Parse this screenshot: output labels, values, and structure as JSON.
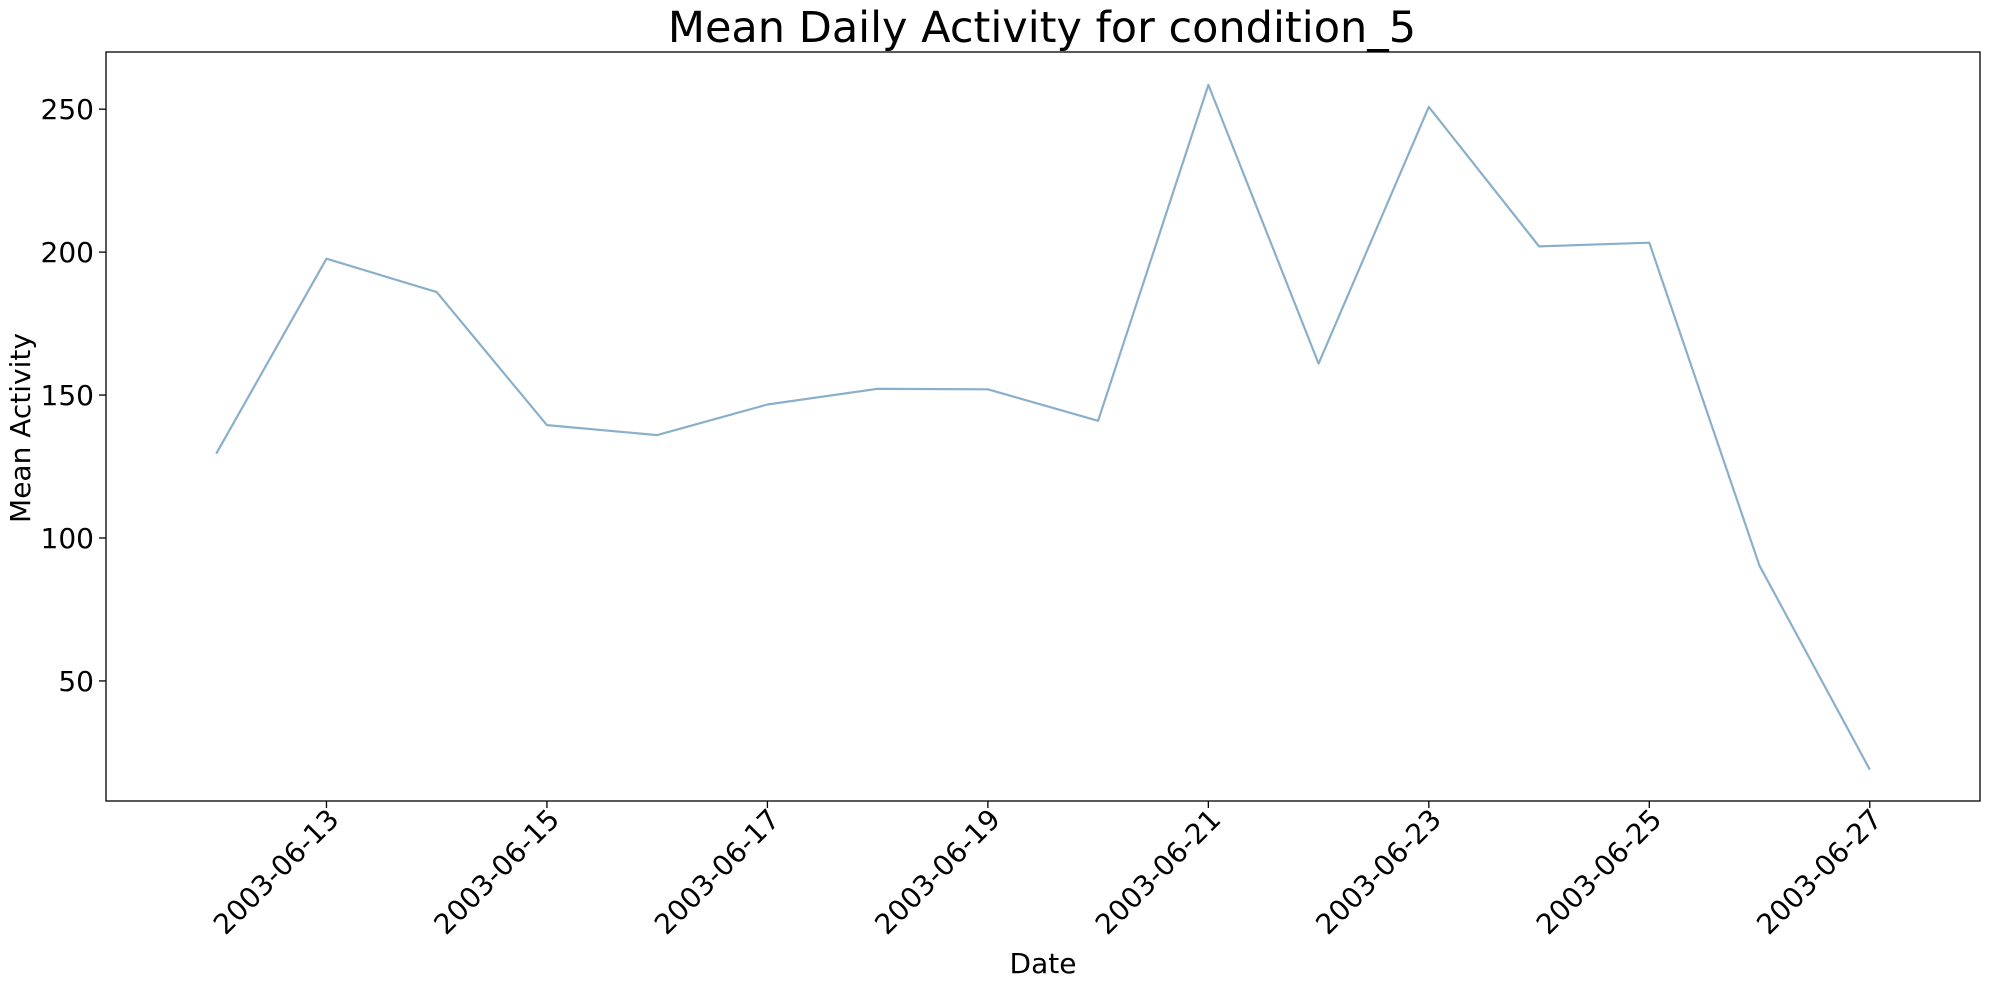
{
  "chart_data": {
    "type": "line",
    "title": "Mean Daily Activity for condition_5",
    "xlabel": "Date",
    "ylabel": "Mean Activity",
    "ylim": [
      8,
      270
    ],
    "xlim": [
      "2003-06-11",
      "2003-06-28"
    ],
    "grid": false,
    "x_ticks": [
      "2003-06-13",
      "2003-06-15",
      "2003-06-17",
      "2003-06-19",
      "2003-06-21",
      "2003-06-23",
      "2003-06-25",
      "2003-06-27"
    ],
    "y_ticks": [
      50,
      100,
      150,
      200,
      250
    ],
    "series": [
      {
        "color": "#8aafc9",
        "x": [
          "2003-06-12",
          "2003-06-13",
          "2003-06-14",
          "2003-06-15",
          "2003-06-16",
          "2003-06-17",
          "2003-06-18",
          "2003-06-19",
          "2003-06-20",
          "2003-06-21",
          "2003-06-22",
          "2003-06-23",
          "2003-06-24",
          "2003-06-25",
          "2003-06-26",
          "2003-06-27"
        ],
        "values": [
          129.5,
          197.7,
          186.0,
          139.5,
          136.0,
          146.7,
          152.2,
          152.0,
          141.0,
          258.5,
          161.0,
          250.8,
          202.0,
          203.3,
          90.3,
          19.0
        ]
      }
    ]
  }
}
